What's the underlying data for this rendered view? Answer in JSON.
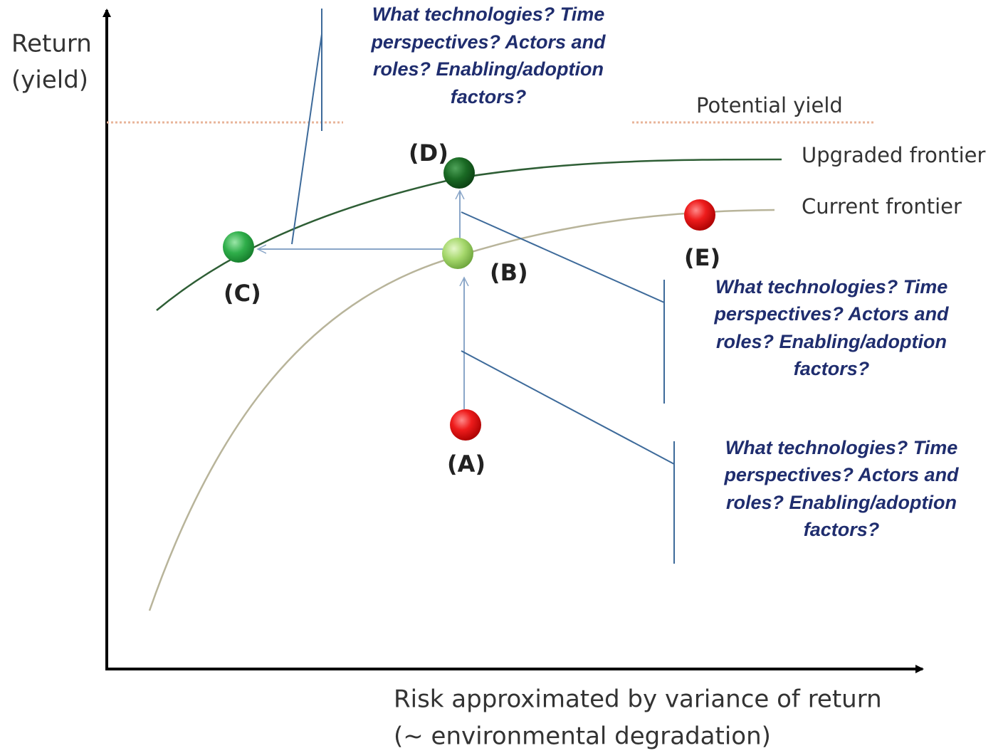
{
  "axes": {
    "y_label": [
      "Return",
      "(yield)"
    ],
    "x_label": [
      "Risk approximated by variance of return",
      "(~ environmental degradation)"
    ]
  },
  "lines": {
    "potential": "Potential yield",
    "upgraded": "Upgraded frontier",
    "current": "Current frontier"
  },
  "points": {
    "A": "(A)",
    "B": "(B)",
    "C": "(C)",
    "D": "(D)",
    "E": "(E)"
  },
  "callouts": [
    [
      "What technologies? Time",
      "perspectives?  Actors and",
      "roles? Enabling/adoption",
      "factors?"
    ],
    [
      "What technologies? Time",
      "perspectives?  Actors and",
      "roles? Enabling/adoption",
      "factors?"
    ],
    [
      "What technologies? Time",
      "perspectives?  Actors and",
      "roles? Enabling/adoption",
      "factors?"
    ]
  ]
}
